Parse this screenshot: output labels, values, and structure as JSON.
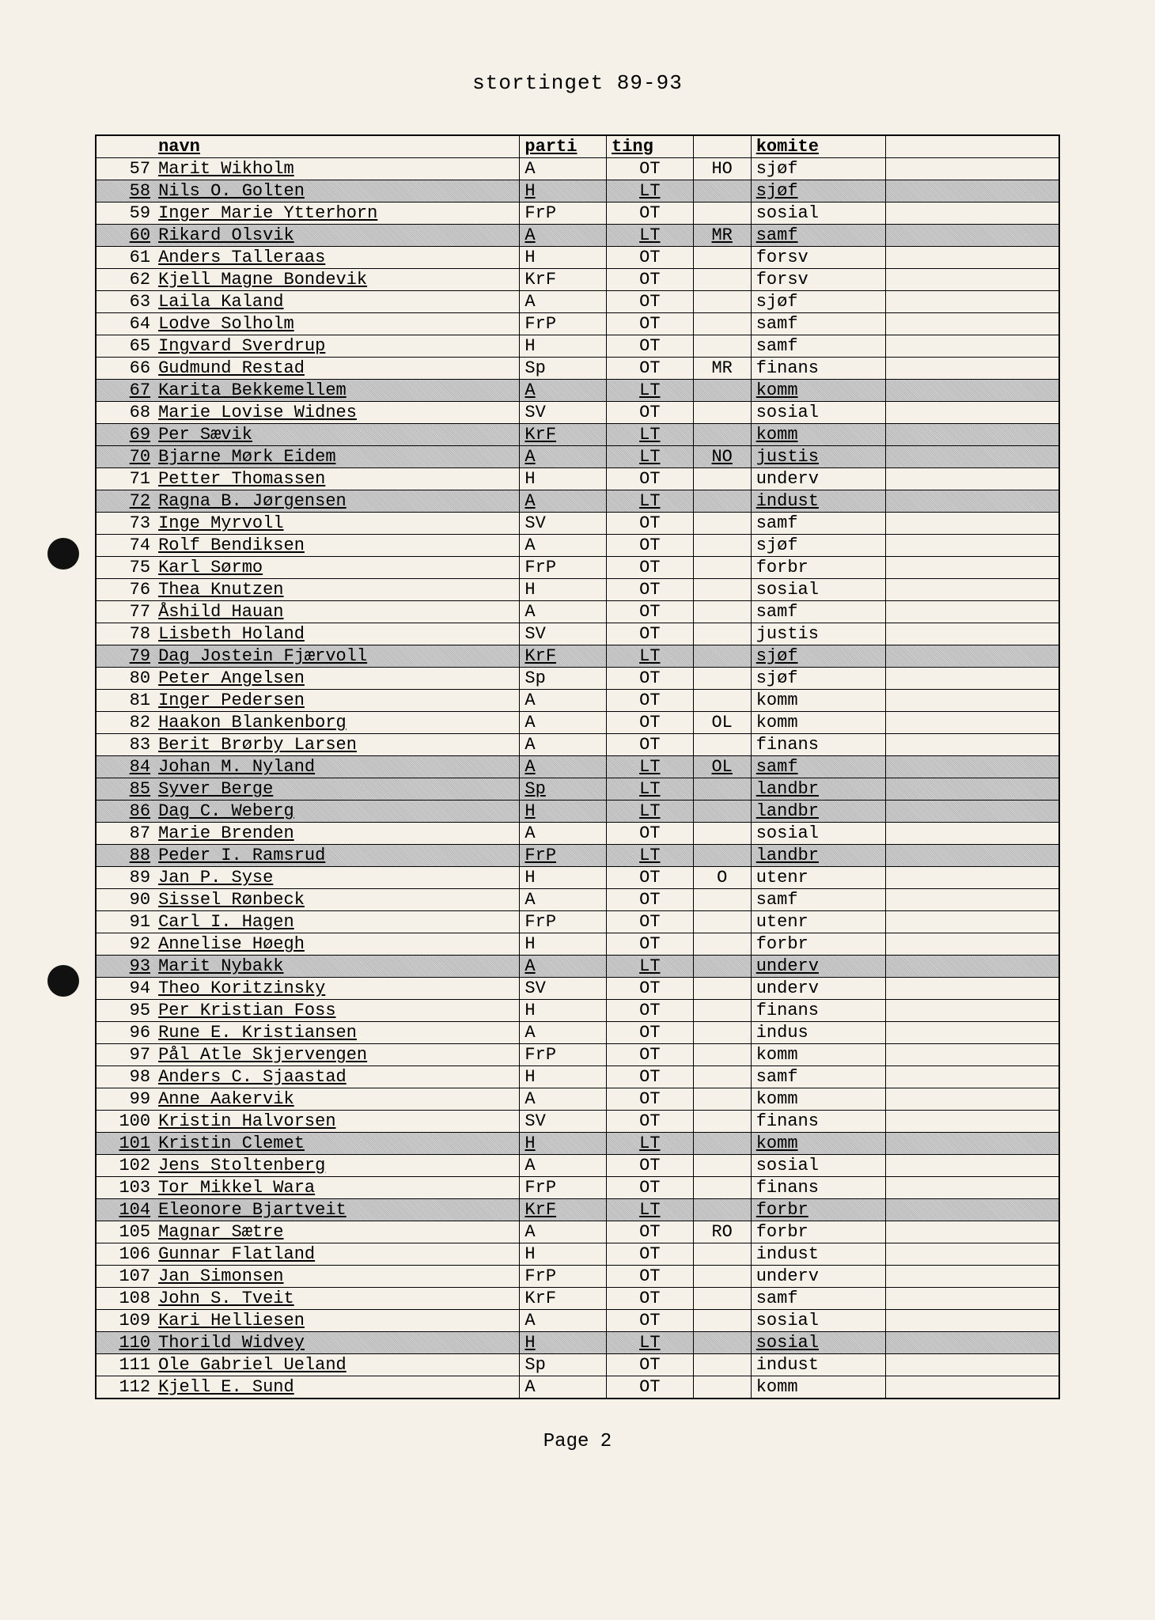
{
  "title": "stortinget 89-93",
  "footer": "Page 2",
  "columns": [
    "navn",
    "parti",
    "ting",
    "",
    "komite",
    ""
  ],
  "rows": [
    {
      "n": 57,
      "navn": "Marit Wikholm",
      "parti": "A",
      "ting": "OT",
      "reg": "HO",
      "kom": "sjøf",
      "sh": false
    },
    {
      "n": 58,
      "navn": "Nils O. Golten",
      "parti": "H",
      "ting": "LT",
      "reg": "",
      "kom": "sjøf",
      "sh": true
    },
    {
      "n": 59,
      "navn": "Inger Marie Ytterhorn",
      "parti": "FrP",
      "ting": "OT",
      "reg": "",
      "kom": "sosial",
      "sh": false
    },
    {
      "n": 60,
      "navn": "Rikard Olsvik",
      "parti": "A",
      "ting": "LT",
      "reg": "MR",
      "kom": "samf",
      "sh": true
    },
    {
      "n": 61,
      "navn": "Anders Talleraas",
      "parti": "H",
      "ting": "OT",
      "reg": "",
      "kom": "forsv",
      "sh": false
    },
    {
      "n": 62,
      "navn": "Kjell Magne Bondevik",
      "parti": "KrF",
      "ting": "OT",
      "reg": "",
      "kom": "forsv",
      "sh": false
    },
    {
      "n": 63,
      "navn": "Laila Kaland",
      "parti": "A",
      "ting": "OT",
      "reg": "",
      "kom": "sjøf",
      "sh": false
    },
    {
      "n": 64,
      "navn": "Lodve Solholm",
      "parti": "FrP",
      "ting": "OT",
      "reg": "",
      "kom": "samf",
      "sh": false
    },
    {
      "n": 65,
      "navn": "Ingvard Sverdrup",
      "parti": "H",
      "ting": "OT",
      "reg": "",
      "kom": "samf",
      "sh": false
    },
    {
      "n": 66,
      "navn": "Gudmund Restad",
      "parti": "Sp",
      "ting": "OT",
      "reg": "MR",
      "kom": "finans",
      "sh": false
    },
    {
      "n": 67,
      "navn": "Karita Bekkemellem",
      "parti": "A",
      "ting": "LT",
      "reg": "",
      "kom": "komm",
      "sh": true
    },
    {
      "n": 68,
      "navn": "Marie Lovise Widnes",
      "parti": "SV",
      "ting": "OT",
      "reg": "",
      "kom": "sosial",
      "sh": false
    },
    {
      "n": 69,
      "navn": "Per Sævik",
      "parti": "KrF",
      "ting": "LT",
      "reg": "",
      "kom": "komm",
      "sh": true
    },
    {
      "n": 70,
      "navn": "Bjarne Mørk Eidem",
      "parti": "A",
      "ting": "LT",
      "reg": "NO",
      "kom": "justis",
      "sh": true
    },
    {
      "n": 71,
      "navn": "Petter Thomassen",
      "parti": "H",
      "ting": "OT",
      "reg": "",
      "kom": "underv",
      "sh": false
    },
    {
      "n": 72,
      "navn": "Ragna B. Jørgensen",
      "parti": "A",
      "ting": "LT",
      "reg": "",
      "kom": "indust",
      "sh": true
    },
    {
      "n": 73,
      "navn": "Inge Myrvoll",
      "parti": "SV",
      "ting": "OT",
      "reg": "",
      "kom": "samf",
      "sh": false
    },
    {
      "n": 74,
      "navn": "Rolf Bendiksen",
      "parti": "A",
      "ting": "OT",
      "reg": "",
      "kom": "sjøf",
      "sh": false
    },
    {
      "n": 75,
      "navn": "Karl Sørmo",
      "parti": "FrP",
      "ting": "OT",
      "reg": "",
      "kom": "forbr",
      "sh": false
    },
    {
      "n": 76,
      "navn": "Thea Knutzen",
      "parti": "H",
      "ting": "OT",
      "reg": "",
      "kom": "sosial",
      "sh": false
    },
    {
      "n": 77,
      "navn": "Åshild Hauan",
      "parti": "A",
      "ting": "OT",
      "reg": "",
      "kom": "samf",
      "sh": false
    },
    {
      "n": 78,
      "navn": "Lisbeth Holand",
      "parti": "SV",
      "ting": "OT",
      "reg": "",
      "kom": "justis",
      "sh": false
    },
    {
      "n": 79,
      "navn": "Dag Jostein Fjærvoll",
      "parti": "KrF",
      "ting": "LT",
      "reg": "",
      "kom": "sjøf",
      "sh": true
    },
    {
      "n": 80,
      "navn": "Peter Angelsen",
      "parti": "Sp",
      "ting": "OT",
      "reg": "",
      "kom": "sjøf",
      "sh": false
    },
    {
      "n": 81,
      "navn": "Inger Pedersen",
      "parti": "A",
      "ting": "OT",
      "reg": "",
      "kom": "komm",
      "sh": false
    },
    {
      "n": 82,
      "navn": "Haakon Blankenborg",
      "parti": "A",
      "ting": "OT",
      "reg": "OL",
      "kom": "komm",
      "sh": false
    },
    {
      "n": 83,
      "navn": "Berit Brørby Larsen",
      "parti": "A",
      "ting": "OT",
      "reg": "",
      "kom": "finans",
      "sh": false
    },
    {
      "n": 84,
      "navn": "Johan M. Nyland",
      "parti": "A",
      "ting": "LT",
      "reg": "OL",
      "kom": "samf",
      "sh": true
    },
    {
      "n": 85,
      "navn": "Syver Berge",
      "parti": "Sp",
      "ting": "LT",
      "reg": "",
      "kom": "landbr",
      "sh": true
    },
    {
      "n": 86,
      "navn": "Dag C. Weberg",
      "parti": "H",
      "ting": "LT",
      "reg": "",
      "kom": "landbr",
      "sh": true
    },
    {
      "n": 87,
      "navn": "Marie Brenden",
      "parti": "A",
      "ting": "OT",
      "reg": "",
      "kom": "sosial",
      "sh": false
    },
    {
      "n": 88,
      "navn": "Peder I. Ramsrud",
      "parti": "FrP",
      "ting": "LT",
      "reg": "",
      "kom": "landbr",
      "sh": true
    },
    {
      "n": 89,
      "navn": "Jan P. Syse",
      "parti": "H",
      "ting": "OT",
      "reg": "O",
      "kom": "utenr",
      "sh": false
    },
    {
      "n": 90,
      "navn": "Sissel Rønbeck",
      "parti": "A",
      "ting": "OT",
      "reg": "",
      "kom": "samf",
      "sh": false
    },
    {
      "n": 91,
      "navn": "Carl I. Hagen",
      "parti": "FrP",
      "ting": "OT",
      "reg": "",
      "kom": "utenr",
      "sh": false
    },
    {
      "n": 92,
      "navn": "Annelise Høegh",
      "parti": "H",
      "ting": "OT",
      "reg": "",
      "kom": "forbr",
      "sh": false
    },
    {
      "n": 93,
      "navn": "Marit Nybakk",
      "parti": "A",
      "ting": "LT",
      "reg": "",
      "kom": "underv",
      "sh": true
    },
    {
      "n": 94,
      "navn": "Theo Koritzinsky",
      "parti": "SV",
      "ting": "OT",
      "reg": "",
      "kom": "underv",
      "sh": false
    },
    {
      "n": 95,
      "navn": "Per Kristian Foss",
      "parti": "H",
      "ting": "OT",
      "reg": "",
      "kom": "finans",
      "sh": false
    },
    {
      "n": 96,
      "navn": "Rune E. Kristiansen",
      "parti": "A",
      "ting": "OT",
      "reg": "",
      "kom": "indus",
      "sh": false
    },
    {
      "n": 97,
      "navn": "Pål Atle Skjervengen",
      "parti": "FrP",
      "ting": "OT",
      "reg": "",
      "kom": "komm",
      "sh": false
    },
    {
      "n": 98,
      "navn": "Anders C. Sjaastad",
      "parti": "H",
      "ting": "OT",
      "reg": "",
      "kom": "samf",
      "sh": false
    },
    {
      "n": 99,
      "navn": "Anne Aakervik",
      "parti": "A",
      "ting": "OT",
      "reg": "",
      "kom": "komm",
      "sh": false
    },
    {
      "n": 100,
      "navn": "Kristin Halvorsen",
      "parti": "SV",
      "ting": "OT",
      "reg": "",
      "kom": "finans",
      "sh": false
    },
    {
      "n": 101,
      "navn": "Kristin Clemet",
      "parti": "H",
      "ting": "LT",
      "reg": "",
      "kom": "komm",
      "sh": true
    },
    {
      "n": 102,
      "navn": "Jens Stoltenberg",
      "parti": "A",
      "ting": "OT",
      "reg": "",
      "kom": "sosial",
      "sh": false
    },
    {
      "n": 103,
      "navn": "Tor Mikkel Wara",
      "parti": "FrP",
      "ting": "OT",
      "reg": "",
      "kom": "finans",
      "sh": false
    },
    {
      "n": 104,
      "navn": "Eleonore Bjartveit",
      "parti": "KrF",
      "ting": "LT",
      "reg": "",
      "kom": "forbr",
      "sh": true
    },
    {
      "n": 105,
      "navn": "Magnar Sætre",
      "parti": "A",
      "ting": "OT",
      "reg": "RO",
      "kom": "forbr",
      "sh": false
    },
    {
      "n": 106,
      "navn": "Gunnar Flatland",
      "parti": "H",
      "ting": "OT",
      "reg": "",
      "kom": "indust",
      "sh": false
    },
    {
      "n": 107,
      "navn": "Jan Simonsen",
      "parti": "FrP",
      "ting": "OT",
      "reg": "",
      "kom": "underv",
      "sh": false
    },
    {
      "n": 108,
      "navn": "John S. Tveit",
      "parti": "KrF",
      "ting": "OT",
      "reg": "",
      "kom": "samf",
      "sh": false
    },
    {
      "n": 109,
      "navn": "Kari Helliesen",
      "parti": "A",
      "ting": "OT",
      "reg": "",
      "kom": "sosial",
      "sh": false
    },
    {
      "n": 110,
      "navn": "Thorild Widvey",
      "parti": "H",
      "ting": "LT",
      "reg": "",
      "kom": "sosial",
      "sh": true
    },
    {
      "n": 111,
      "navn": "Ole Gabriel Ueland",
      "parti": "Sp",
      "ting": "OT",
      "reg": "",
      "kom": "indust",
      "sh": false
    },
    {
      "n": 112,
      "navn": "Kjell E. Sund",
      "parti": "A",
      "ting": "OT",
      "reg": "",
      "kom": "komm",
      "sh": false
    }
  ],
  "style": {
    "page_bg": "#f5f0e8",
    "border_color": "#000000",
    "shaded_bg": "#c8c8c8",
    "font_family": "Courier New",
    "title_fontsize": 26,
    "cell_fontsize": 22
  }
}
